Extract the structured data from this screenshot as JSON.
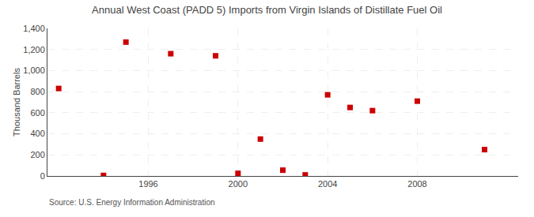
{
  "chart_data": {
    "type": "scatter",
    "title": "Annual West Coast (PADD 5) Imports from Virgin Islands of Distillate Fuel Oil",
    "ylabel": "Thousand Barrels",
    "annotations": [
      "Source: U.S. Energy Information Administration"
    ],
    "x": [
      1992,
      1994,
      1995,
      1997,
      1999,
      2000,
      2001,
      2002,
      2003,
      2004,
      2005,
      2006,
      2008,
      2011
    ],
    "values": [
      830,
      5,
      1270,
      1160,
      1140,
      25,
      350,
      55,
      10,
      770,
      650,
      620,
      710,
      250
    ],
    "color": "#cc0000",
    "marker": "square",
    "xlim": [
      1991.5,
      2012.5
    ],
    "ylim": [
      0,
      1400
    ],
    "xticks": [
      1996,
      2000,
      2004,
      2008
    ],
    "yticks": [
      0,
      200,
      400,
      600,
      800,
      {
        "value": 1000,
        "label": "1,000"
      },
      {
        "value": 1200,
        "label": "1,200"
      },
      {
        "value": 1400,
        "label": "1,400"
      }
    ],
    "grid": true
  }
}
